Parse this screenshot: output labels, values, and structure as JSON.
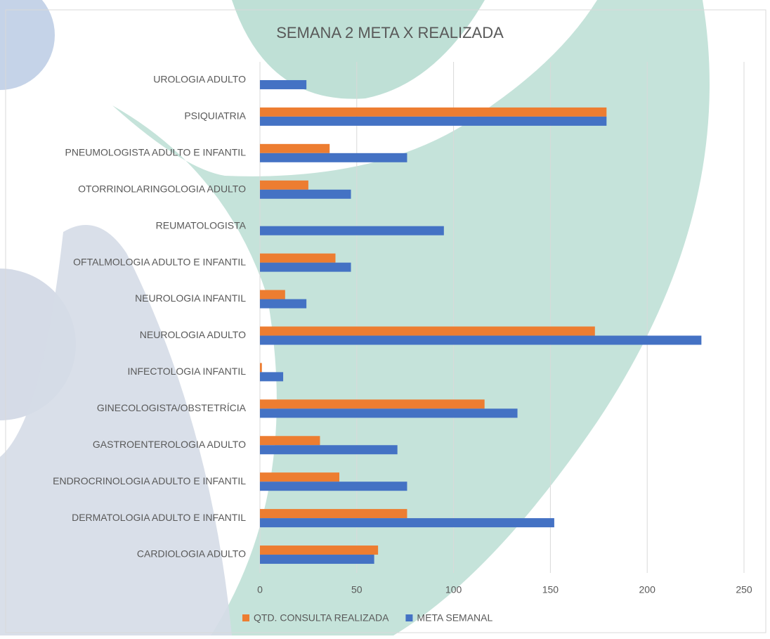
{
  "chart_data": {
    "type": "bar",
    "orientation": "horizontal",
    "title": "SEMANA 2 META X REALIZADA",
    "categories": [
      "CARDIOLOGIA ADULTO",
      "DERMATOLOGIA ADULTO E INFANTIL",
      "ENDROCRINOLOGIA ADULTO E INFANTIL",
      "GASTROENTEROLOGIA ADULTO",
      "GINECOLOGISTA/OBSTETRÍCIA",
      "INFECTOLOGIA INFANTIL",
      "NEUROLOGIA ADULTO",
      "NEUROLOGIA INFANTIL",
      "OFTALMOLOGIA ADULTO E INFANTIL",
      "REUMATOLOGISTA",
      "OTORRINOLARINGOLOGIA ADULTO",
      "PNEUMOLOGISTA ADULTO E INFANTIL",
      "PSIQUIATRIA",
      "UROLOGIA ADULTO"
    ],
    "series": [
      {
        "name": "QTD. CONSULTA REALIZADA",
        "color": "#ed7d31",
        "values": [
          61,
          76,
          41,
          31,
          116,
          1,
          173,
          13,
          39,
          0,
          25,
          36,
          179,
          0
        ]
      },
      {
        "name": "META SEMANAL",
        "color": "#4472c4",
        "values": [
          59,
          152,
          76,
          71,
          133,
          12,
          228,
          24,
          47,
          95,
          47,
          76,
          179,
          24
        ]
      }
    ],
    "xlim": [
      0,
      250
    ],
    "xticks": [
      0,
      50,
      100,
      150,
      200,
      250
    ],
    "grid": true,
    "legend": "bottom"
  }
}
